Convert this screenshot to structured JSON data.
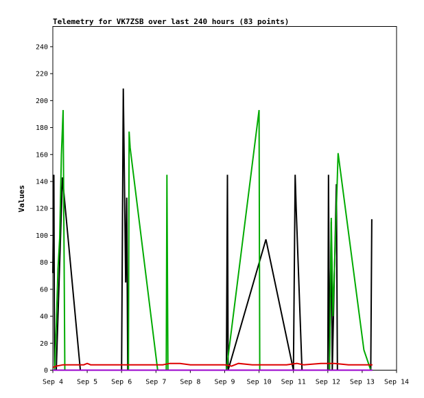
{
  "chart_data": {
    "type": "line",
    "title": "Telemetry for VK7ZSB over last 240 hours (83 points)",
    "ylabel": "Values",
    "xlabel": "",
    "xlim": [
      "Sep 4",
      "Sep 14"
    ],
    "ylim": [
      0,
      255
    ],
    "x_ticks": [
      "Sep 4",
      "Sep 5",
      "Sep 6",
      "Sep 7",
      "Sep 8",
      "Sep 9",
      "Sep 10",
      "Sep 11",
      "Sep 12",
      "Sep 13",
      "Sep 14"
    ],
    "y_ticks": [
      0,
      20,
      40,
      60,
      80,
      100,
      120,
      140,
      160,
      180,
      200,
      220,
      240
    ],
    "grid": false,
    "legend": "none",
    "series": [
      {
        "color": "#000000",
        "points": [
          [
            4.0,
            72
          ],
          [
            4.03,
            145
          ],
          [
            4.05,
            0
          ],
          [
            4.1,
            0
          ],
          [
            4.28,
            143
          ],
          [
            4.8,
            0
          ],
          [
            6.0,
            0
          ],
          [
            6.05,
            209
          ],
          [
            6.12,
            65
          ],
          [
            6.15,
            128
          ],
          [
            6.18,
            0
          ],
          [
            9.05,
            0
          ],
          [
            9.08,
            145
          ],
          [
            9.1,
            0
          ],
          [
            10.2,
            97
          ],
          [
            11.0,
            0
          ],
          [
            11.05,
            145
          ],
          [
            11.08,
            120
          ],
          [
            11.25,
            0
          ],
          [
            12.0,
            0
          ],
          [
            12.02,
            145
          ],
          [
            12.05,
            0
          ],
          [
            12.1,
            110
          ],
          [
            12.13,
            0
          ],
          [
            12.25,
            138
          ],
          [
            12.28,
            0
          ],
          [
            13.25,
            0
          ],
          [
            13.28,
            112
          ]
        ]
      },
      {
        "color": "#00aa00",
        "points": [
          [
            4.05,
            0
          ],
          [
            4.1,
            33
          ],
          [
            4.15,
            75
          ],
          [
            4.2,
            98
          ],
          [
            4.25,
            160
          ],
          [
            4.3,
            193
          ],
          [
            4.35,
            0
          ],
          [
            6.2,
            0
          ],
          [
            6.22,
            177
          ],
          [
            6.25,
            165
          ],
          [
            7.05,
            0
          ],
          [
            7.3,
            0
          ],
          [
            7.32,
            145
          ],
          [
            7.35,
            0
          ],
          [
            9.05,
            0
          ],
          [
            10.0,
            193
          ],
          [
            10.02,
            0
          ],
          [
            12.05,
            0
          ],
          [
            12.1,
            113
          ],
          [
            12.15,
            40
          ],
          [
            12.3,
            161
          ],
          [
            13.05,
            15
          ],
          [
            13.25,
            0
          ]
        ]
      },
      {
        "color": "#dd0000",
        "points": [
          [
            4.0,
            2
          ],
          [
            4.1,
            3
          ],
          [
            4.3,
            4
          ],
          [
            4.9,
            4
          ],
          [
            5.0,
            5
          ],
          [
            5.1,
            4
          ],
          [
            6.0,
            4
          ],
          [
            6.5,
            4
          ],
          [
            7.2,
            4
          ],
          [
            7.4,
            5
          ],
          [
            7.7,
            5
          ],
          [
            8.0,
            4
          ],
          [
            8.5,
            4
          ],
          [
            9.0,
            4
          ],
          [
            9.2,
            3
          ],
          [
            9.4,
            5
          ],
          [
            9.8,
            4
          ],
          [
            10.4,
            4
          ],
          [
            10.8,
            4
          ],
          [
            11.1,
            5
          ],
          [
            11.3,
            4
          ],
          [
            11.8,
            5
          ],
          [
            12.2,
            5
          ],
          [
            12.6,
            4
          ],
          [
            13.0,
            4
          ],
          [
            13.3,
            4
          ]
        ]
      },
      {
        "color": "#9900cc",
        "points": [
          [
            4.0,
            0
          ],
          [
            13.3,
            0
          ]
        ]
      }
    ]
  }
}
